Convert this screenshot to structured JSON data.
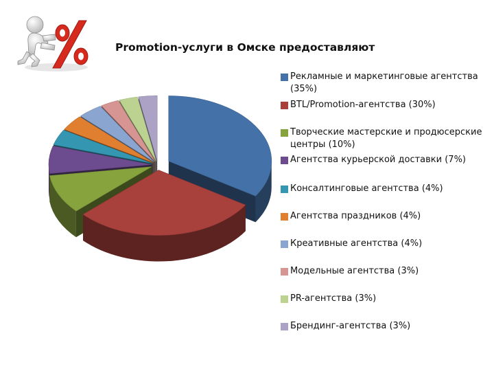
{
  "chart_data": {
    "type": "pie",
    "title": "Promotion-услуги в Омске предоставляют",
    "legend_position": "right",
    "three_d": true,
    "slices": [
      {
        "label": "Рекламные и маркетинговые агентства (35%)",
        "value": 35,
        "color": "#4472a8"
      },
      {
        "label": "BTL/Promotion-агентства (30%)",
        "value": 30,
        "color": "#a8403c"
      },
      {
        "label": "Творческие мастерские и продюсерские центры (10%)",
        "value": 10,
        "color": "#86a33e"
      },
      {
        "label": "Агентства курьерской доставки (7%)",
        "value": 7,
        "color": "#6c4c8e"
      },
      {
        "label": "Консалтинговые агентства (4%)",
        "value": 4,
        "color": "#3496b0"
      },
      {
        "label": "Агентства праздников (4%)",
        "value": 4,
        "color": "#e07f30"
      },
      {
        "label": "Креативные агентства (4%)",
        "value": 4,
        "color": "#8aa6d0"
      },
      {
        "label": "Модельные агентства (3%)",
        "value": 3,
        "color": "#d69592"
      },
      {
        "label": "PR-агентства (3%)",
        "value": 3,
        "color": "#bcd290"
      },
      {
        "label": "Брендинг-агентства (3%)",
        "value": 3,
        "color": "#aba2c6"
      }
    ]
  },
  "logo": {
    "icon": "percent-figure-icon",
    "color": "#d62a1e"
  }
}
